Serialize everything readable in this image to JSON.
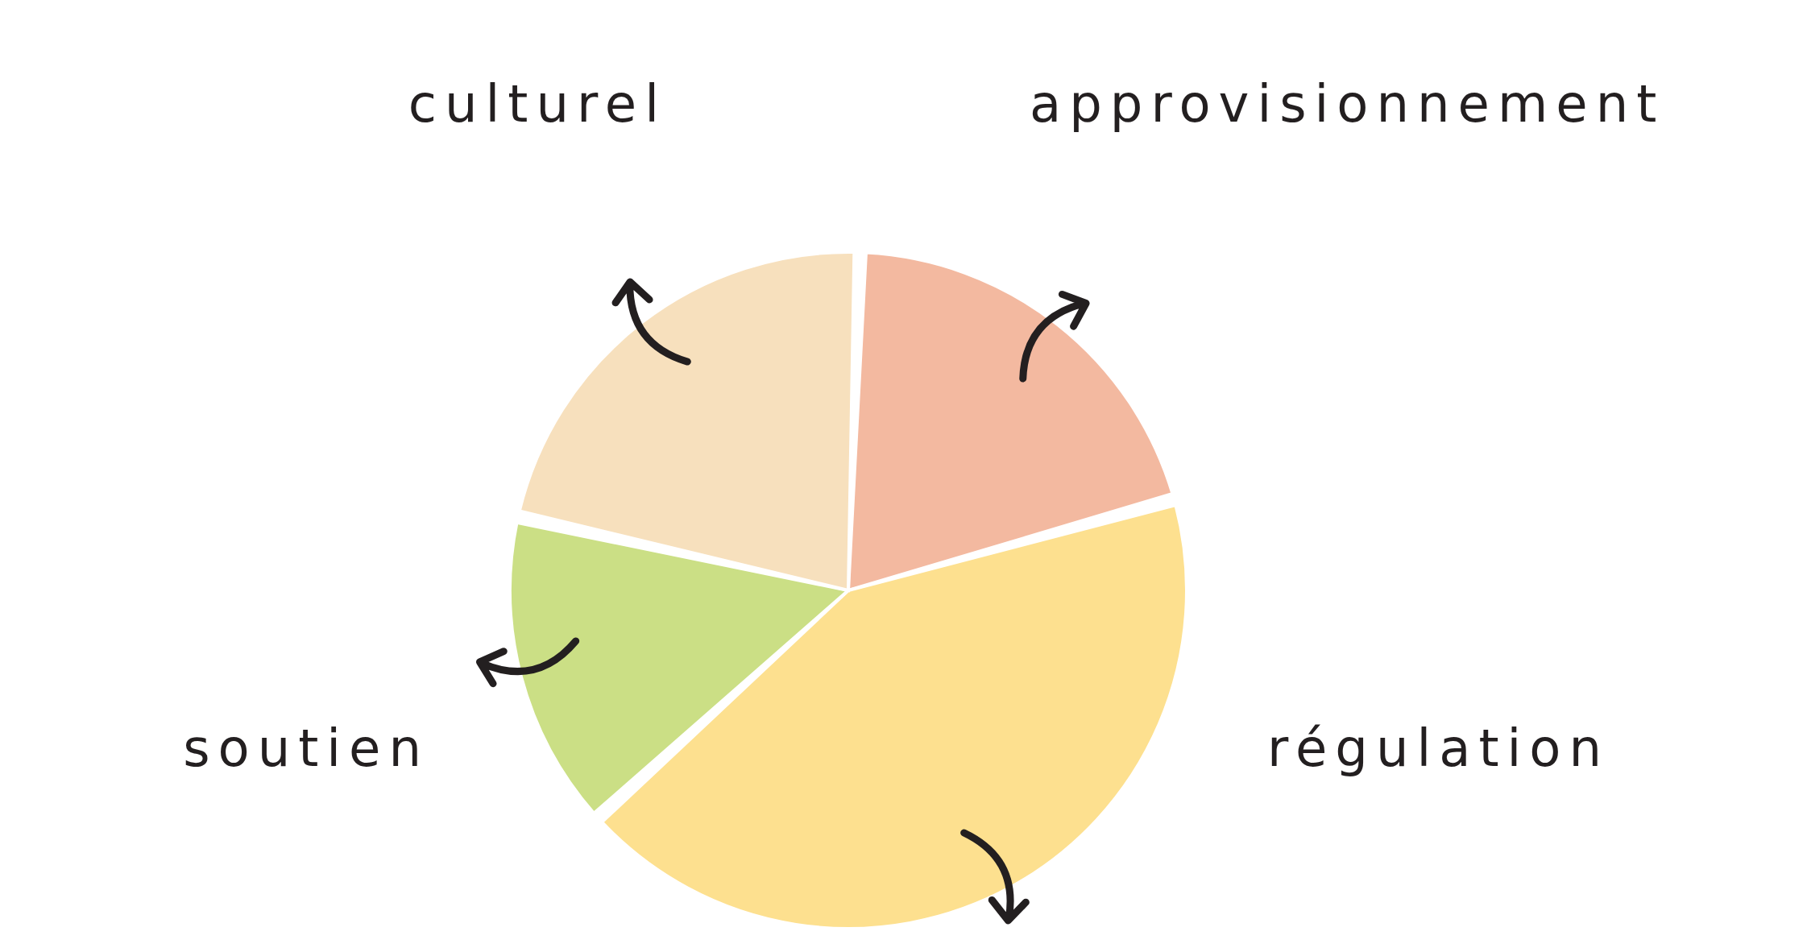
{
  "chart_data": {
    "type": "pie",
    "categories": [
      "approvisionnement",
      "régulation",
      "soutien",
      "culturel"
    ],
    "values": [
      20,
      43,
      15,
      22
    ],
    "colors": [
      "#f3b9a0",
      "#fde08f",
      "#cbdf85",
      "#f7e0bd"
    ]
  }
}
